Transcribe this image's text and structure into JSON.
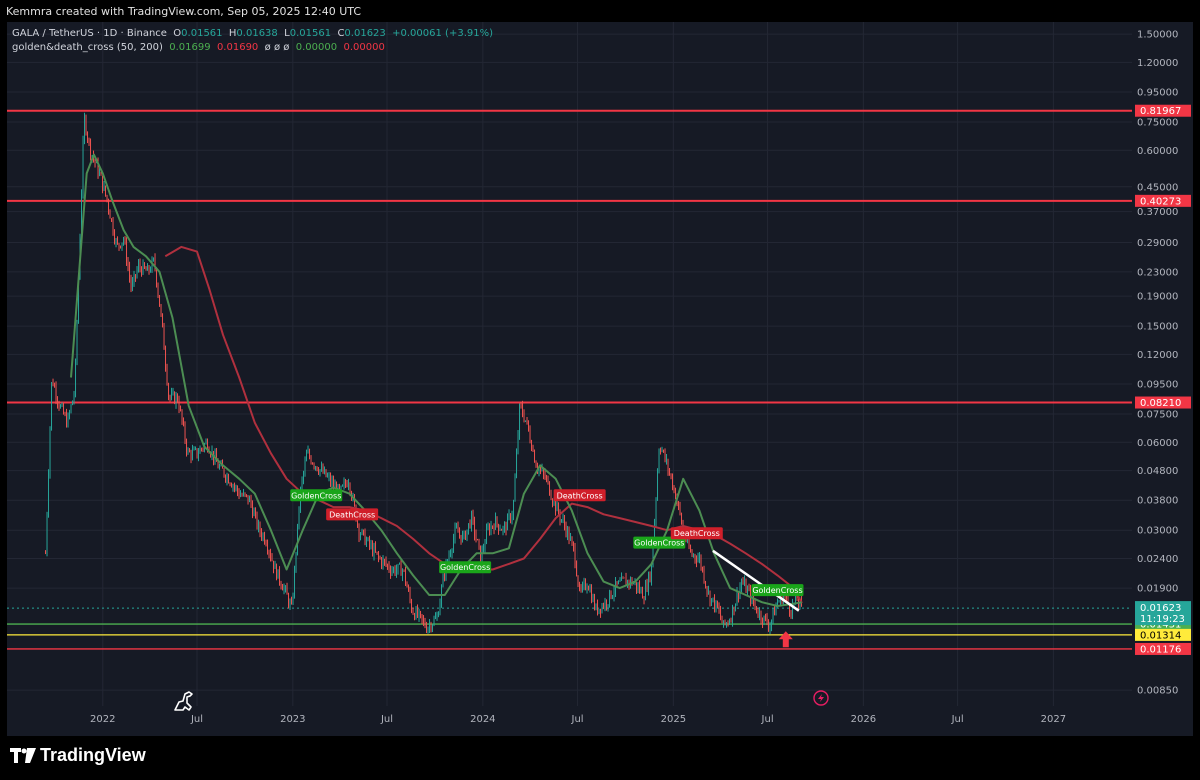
{
  "header": {
    "attribution": "Kemmra created with TradingView.com, Sep 05, 2025 12:40 UTC"
  },
  "legend": {
    "symbol": "GALA / TetherUS · 1D · Binance",
    "o_label": "O",
    "o_value": "0.01561",
    "h_label": "H",
    "h_value": "0.01638",
    "l_label": "L",
    "l_value": "0.01561",
    "c_label": "C",
    "c_value": "0.01623",
    "change": "+0.00061 (+3.91%)",
    "indicator": "golden&death_cross (50, 200)",
    "ind_v1": "0.01699",
    "ind_v2": "0.01690",
    "ind_na": "ø ø ø",
    "ind_v3": "0.00000",
    "ind_v4": "0.00000"
  },
  "colors": {
    "background": "#161a25",
    "grid": "#232734",
    "candle_up": "#26a69a",
    "candle_down": "#ef5350",
    "ma50": "#4c8d52",
    "ma200": "#b0303e",
    "resistance_line": "#f23645",
    "support_green": "#4caf50",
    "support_yellow": "#ffeb3b",
    "trendline": "#ffffff",
    "golden_label": "#1aa51a",
    "death_label": "#d01f2a"
  },
  "branding": {
    "logo_text": "TradingView",
    "logo_icon": "tradingview-logo-icon",
    "watermark_icon": "dinosaur-icon",
    "replay_icon": "lightning-icon"
  },
  "chart_data": {
    "type": "line",
    "title": "GALA / TetherUS · 1D · Binance",
    "y_scale": "log",
    "ylim": [
      0.0075,
      1.65
    ],
    "xlim": [
      "2021-07-01",
      "2027-06-01"
    ],
    "grid": true,
    "y_ticks": [
      "1.50000",
      "1.20000",
      "0.95000",
      "0.75000",
      "0.60000",
      "0.45000",
      "0.37000",
      "0.29000",
      "0.23000",
      "0.19000",
      "0.15000",
      "0.12000",
      "0.09500",
      "0.07500",
      "0.06000",
      "0.04800",
      "0.03800",
      "0.03000",
      "0.02400",
      "0.01900",
      "0.00850"
    ],
    "x_ticks": [
      {
        "date": "2022-01-01",
        "label": "2022"
      },
      {
        "date": "2022-07-01",
        "label": "Jul"
      },
      {
        "date": "2023-01-01",
        "label": "2023"
      },
      {
        "date": "2023-07-01",
        "label": "Jul"
      },
      {
        "date": "2024-01-01",
        "label": "2024"
      },
      {
        "date": "2024-07-01",
        "label": "Jul"
      },
      {
        "date": "2025-01-01",
        "label": "2025"
      },
      {
        "date": "2025-07-01",
        "label": "Jul"
      },
      {
        "date": "2026-01-01",
        "label": "2026"
      },
      {
        "date": "2026-07-01",
        "label": "Jul"
      },
      {
        "date": "2027-01-01",
        "label": "2027"
      }
    ],
    "series": [
      {
        "name": "Price",
        "x": [
          "2021-09-13",
          "2021-09-25",
          "2021-10-10",
          "2021-10-25",
          "2021-11-08",
          "2021-11-26",
          "2021-12-08",
          "2021-12-25",
          "2022-01-10",
          "2022-01-28",
          "2022-02-10",
          "2022-02-25",
          "2022-03-10",
          "2022-03-28",
          "2022-04-10",
          "2022-04-25",
          "2022-05-08",
          "2022-05-25",
          "2022-06-13",
          "2022-07-01",
          "2022-07-20",
          "2022-08-10",
          "2022-09-01",
          "2022-09-20",
          "2022-10-10",
          "2022-10-28",
          "2022-11-10",
          "2022-11-28",
          "2022-12-15",
          "2022-12-30",
          "2023-01-15",
          "2023-01-28",
          "2023-02-15",
          "2023-03-10",
          "2023-04-01",
          "2023-04-18",
          "2023-05-08",
          "2023-06-01",
          "2023-06-15",
          "2023-07-10",
          "2023-08-01",
          "2023-08-18",
          "2023-09-01",
          "2023-09-15",
          "2023-10-05",
          "2023-10-20",
          "2023-11-10",
          "2023-11-25",
          "2023-12-10",
          "2023-12-28",
          "2024-01-10",
          "2024-01-25",
          "2024-02-10",
          "2024-02-28",
          "2024-03-12",
          "2024-03-25",
          "2024-04-13",
          "2024-05-01",
          "2024-05-20",
          "2024-06-10",
          "2024-06-25",
          "2024-07-05",
          "2024-07-20",
          "2024-08-05",
          "2024-08-25",
          "2024-09-10",
          "2024-09-28",
          "2024-10-15",
          "2024-11-05",
          "2024-11-20",
          "2024-12-05",
          "2024-12-20",
          "2025-01-05",
          "2025-01-20",
          "2025-02-03",
          "2025-02-20",
          "2025-03-10",
          "2025-03-28",
          "2025-04-07",
          "2025-04-20",
          "2025-05-12",
          "2025-05-28",
          "2025-06-10",
          "2025-06-22",
          "2025-07-05",
          "2025-07-20",
          "2025-08-01",
          "2025-08-15",
          "2025-08-25",
          "2025-09-05"
        ],
        "y": [
          0.025,
          0.1,
          0.08,
          0.07,
          0.09,
          0.78,
          0.6,
          0.5,
          0.4,
          0.28,
          0.3,
          0.2,
          0.24,
          0.23,
          0.25,
          0.15,
          0.085,
          0.085,
          0.055,
          0.055,
          0.06,
          0.05,
          0.045,
          0.04,
          0.038,
          0.03,
          0.028,
          0.022,
          0.019,
          0.016,
          0.04,
          0.055,
          0.05,
          0.045,
          0.04,
          0.045,
          0.03,
          0.026,
          0.024,
          0.022,
          0.022,
          0.016,
          0.015,
          0.014,
          0.015,
          0.022,
          0.03,
          0.028,
          0.033,
          0.024,
          0.03,
          0.032,
          0.03,
          0.035,
          0.08,
          0.07,
          0.05,
          0.045,
          0.036,
          0.03,
          0.025,
          0.018,
          0.02,
          0.016,
          0.017,
          0.019,
          0.02,
          0.02,
          0.018,
          0.022,
          0.06,
          0.05,
          0.04,
          0.03,
          0.025,
          0.024,
          0.018,
          0.016,
          0.014,
          0.015,
          0.02,
          0.018,
          0.016,
          0.015,
          0.0142,
          0.017,
          0.018,
          0.016,
          0.0175,
          0.01623
        ]
      },
      {
        "name": "MA50",
        "x": [
          "2021-11-01",
          "2021-12-01",
          "2021-12-15",
          "2022-01-01",
          "2022-01-20",
          "2022-02-10",
          "2022-03-01",
          "2022-03-25",
          "2022-04-20",
          "2022-05-15",
          "2022-06-15",
          "2022-07-15",
          "2022-08-20",
          "2022-09-20",
          "2022-10-20",
          "2022-11-20",
          "2022-12-20",
          "2023-01-20",
          "2023-02-20",
          "2023-03-20",
          "2023-04-20",
          "2023-05-20",
          "2023-06-20",
          "2023-07-20",
          "2023-08-20",
          "2023-09-20",
          "2023-10-20",
          "2023-11-20",
          "2023-12-20",
          "2024-01-20",
          "2024-02-20",
          "2024-03-20",
          "2024-04-20",
          "2024-05-20",
          "2024-06-20",
          "2024-07-20",
          "2024-08-20",
          "2024-09-20",
          "2024-10-20",
          "2024-11-20",
          "2024-12-20",
          "2025-01-20",
          "2025-02-20",
          "2025-03-20",
          "2025-04-20",
          "2025-05-20",
          "2025-06-20",
          "2025-07-20",
          "2025-08-20",
          "2025-09-05"
        ],
        "y": [
          0.1,
          0.5,
          0.58,
          0.5,
          0.4,
          0.32,
          0.28,
          0.26,
          0.23,
          0.16,
          0.08,
          0.058,
          0.05,
          0.045,
          0.04,
          0.03,
          0.022,
          0.03,
          0.04,
          0.042,
          0.04,
          0.035,
          0.03,
          0.025,
          0.021,
          0.018,
          0.018,
          0.022,
          0.025,
          0.025,
          0.026,
          0.04,
          0.05,
          0.045,
          0.035,
          0.025,
          0.02,
          0.019,
          0.02,
          0.023,
          0.03,
          0.045,
          0.035,
          0.025,
          0.019,
          0.018,
          0.017,
          0.0165,
          0.0168,
          0.01699
        ]
      },
      {
        "name": "MA200",
        "x": [
          "2022-05-01",
          "2022-06-01",
          "2022-07-01",
          "2022-07-25",
          "2022-08-20",
          "2022-09-20",
          "2022-10-20",
          "2022-11-20",
          "2022-12-20",
          "2023-01-20",
          "2023-02-20",
          "2023-03-20",
          "2023-04-20",
          "2023-05-20",
          "2023-06-20",
          "2023-07-20",
          "2023-08-20",
          "2023-09-20",
          "2023-10-20",
          "2023-11-20",
          "2023-12-20",
          "2024-01-20",
          "2024-02-20",
          "2024-03-20",
          "2024-04-20",
          "2024-05-20",
          "2024-06-20",
          "2024-07-20",
          "2024-08-20",
          "2024-09-20",
          "2024-10-20",
          "2024-11-20",
          "2024-12-20",
          "2025-01-20",
          "2025-02-20",
          "2025-03-20",
          "2025-04-20",
          "2025-05-20",
          "2025-06-20",
          "2025-07-20",
          "2025-08-20",
          "2025-09-05"
        ],
        "y": [
          0.26,
          0.28,
          0.27,
          0.2,
          0.14,
          0.1,
          0.07,
          0.055,
          0.045,
          0.04,
          0.038,
          0.036,
          0.036,
          0.035,
          0.033,
          0.031,
          0.028,
          0.025,
          0.023,
          0.022,
          0.022,
          0.022,
          0.023,
          0.024,
          0.028,
          0.033,
          0.037,
          0.036,
          0.034,
          0.033,
          0.032,
          0.031,
          0.03,
          0.031,
          0.03,
          0.029,
          0.027,
          0.025,
          0.023,
          0.021,
          0.019,
          0.0169
        ]
      }
    ],
    "horizontal_levels": [
      {
        "value": 0.81967,
        "label": "0.81967",
        "color": "#f23645",
        "kind": "resistance"
      },
      {
        "value": 0.40273,
        "label": "0.40273",
        "color": "#f23645",
        "kind": "resistance"
      },
      {
        "value": 0.0821,
        "label": "0.08210",
        "color": "#f23645",
        "kind": "resistance"
      },
      {
        "value": 0.01431,
        "label": "0.01431",
        "color": "#4caf50",
        "kind": "support"
      },
      {
        "value": 0.01314,
        "label": "0.01314",
        "color": "#ffeb3b",
        "kind": "support"
      },
      {
        "value": 0.01176,
        "label": "0.01176",
        "color": "#f23645",
        "kind": "support"
      }
    ],
    "last_price": {
      "value": 0.01623,
      "label": "0.01623",
      "countdown": "11:19:23"
    },
    "trendline": {
      "x1": "2025-03-18",
      "y1": 0.0255,
      "x2": "2025-08-30",
      "y2": 0.0159
    },
    "annotations": [
      {
        "text": "GoldenCross",
        "kind": "golden",
        "x": "2023-02-15",
        "y": 0.0395
      },
      {
        "text": "DeathCross",
        "kind": "death",
        "x": "2023-04-25",
        "y": 0.034
      },
      {
        "text": "GoldenCross",
        "kind": "golden",
        "x": "2023-11-28",
        "y": 0.0224
      },
      {
        "text": "DeathCross",
        "kind": "death",
        "x": "2024-07-05",
        "y": 0.0395
      },
      {
        "text": "GoldenCross",
        "kind": "golden",
        "x": "2024-12-05",
        "y": 0.0272
      },
      {
        "text": "DeathCross",
        "kind": "death",
        "x": "2025-02-15",
        "y": 0.0293
      },
      {
        "text": "GoldenCross",
        "kind": "golden",
        "x": "2025-07-20",
        "y": 0.0187
      }
    ],
    "signal_arrow": {
      "x": "2025-08-05",
      "y": 0.0125
    }
  }
}
